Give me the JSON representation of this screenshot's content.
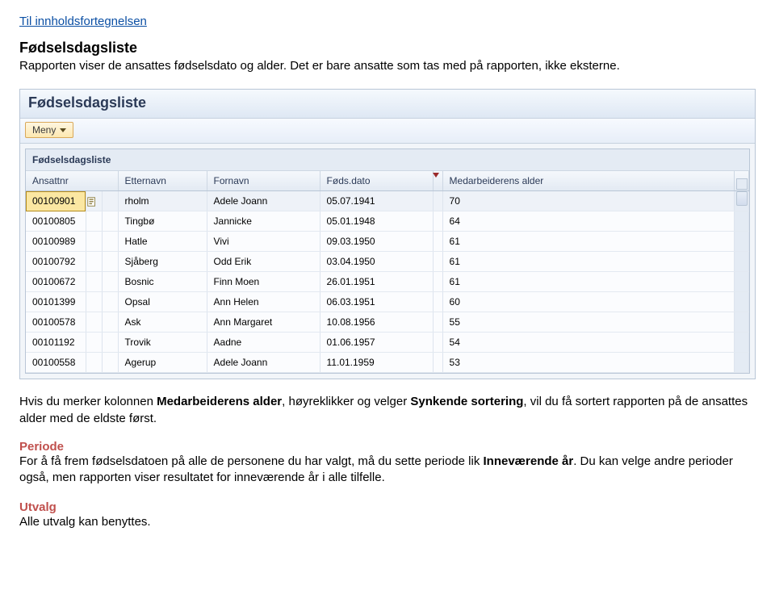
{
  "page": {
    "toc_link": "Til innholdsfortegnelsen",
    "heading1": "Fødselsdagsliste",
    "intro": "Rapporten viser de ansattes fødselsdato og alder. Det er bare ansatte som tas med på rapporten, ikke eksterne.",
    "after_para1_a": "Hvis du merker kolonnen ",
    "after_para1_bold": "Medarbeiderens alder",
    "after_para1_b": ", høyreklikker og velger ",
    "after_para1_bold2": "Synkende sortering",
    "after_para1_c": ", vil du få sortert rapporten på de ansattes alder med de eldste først.",
    "periode_label": "Periode",
    "periode_text_a": "For å få frem fødselsdatoen på alle de personene du har valgt, må du sette periode lik ",
    "periode_bold": "Inneværende år",
    "periode_text_b": ". Du kan velge andre perioder også, men rapporten viser resultatet for inneværende år i alle tilfelle.",
    "utvalg_label": "Utvalg",
    "utvalg_text": "Alle utvalg kan benyttes."
  },
  "app": {
    "title": "Fødselsdagsliste",
    "menu_label": "Meny",
    "grid_title": "Fødselsdagsliste",
    "columns": {
      "ansattnr": "Ansattnr",
      "etternavn": "Etternavn",
      "fornavn": "Fornavn",
      "fodsdato": "Føds.dato",
      "alder": "Medarbeiderens alder"
    },
    "rows": [
      {
        "id": "00100901",
        "ett": "rholm",
        "for": "Adele Joann",
        "dato": "05.07.1941",
        "age": "70",
        "selected": true
      },
      {
        "id": "00100805",
        "ett": "Tingbø",
        "for": "Jannicke",
        "dato": "05.01.1948",
        "age": "64"
      },
      {
        "id": "00100989",
        "ett": "Hatle",
        "for": "Vivi",
        "dato": "09.03.1950",
        "age": "61"
      },
      {
        "id": "00100792",
        "ett": "Sjåberg",
        "for": "Odd Erik",
        "dato": "03.04.1950",
        "age": "61"
      },
      {
        "id": "00100672",
        "ett": "Bosnic",
        "for": "Finn Moen",
        "dato": "26.01.1951",
        "age": "61"
      },
      {
        "id": "00101399",
        "ett": "Opsal",
        "for": "Ann Helen",
        "dato": "06.03.1951",
        "age": "60"
      },
      {
        "id": "00100578",
        "ett": "Ask",
        "for": "Ann Margaret",
        "dato": "10.08.1956",
        "age": "55"
      },
      {
        "id": "00101192",
        "ett": "Trovik",
        "for": "Aadne",
        "dato": "01.06.1957",
        "age": "54"
      },
      {
        "id": "00100558",
        "ett": "Agerup",
        "for": "Adele Joann",
        "dato": "11.01.1959",
        "age": "53"
      }
    ]
  },
  "style": {
    "link_color": "#0b4fa4",
    "accent_red": "#c0504d",
    "panel_border": "#b9c6d6",
    "panel_bg": "#f2f5f9",
    "header_grad_from": "#f5f9fd",
    "header_grad_to": "#dee8f4",
    "menu_btn_border": "#d9a85a",
    "menu_btn_bg_from": "#fff6e0",
    "menu_btn_bg_to": "#fde8b0",
    "cell_selected_bg": "#fbe7a2",
    "sort_marker": "#9b2a2a",
    "text_header": "#2b3a57",
    "row_bg": "#fbfcfe",
    "font_family": "Arial",
    "title_fontsize_pt": 18,
    "body_fontsize_pt": 15,
    "grid_fontsize_pt": 12
  }
}
